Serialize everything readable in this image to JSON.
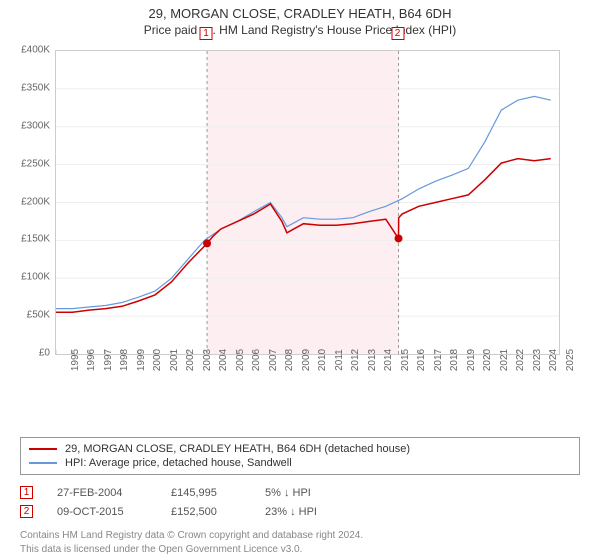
{
  "title": "29, MORGAN CLOSE, CRADLEY HEATH, B64 6DH",
  "subtitle": "Price paid vs. HM Land Registry's House Price Index (HPI)",
  "chart": {
    "type": "line",
    "background_color": "#ffffff",
    "grid_color": "#eeeeee",
    "axis_color": "#cccccc",
    "label_color": "#666666",
    "tick_fontsize": 10,
    "x_years": [
      1995,
      1996,
      1997,
      1998,
      1999,
      2000,
      2001,
      2002,
      2003,
      2004,
      2005,
      2006,
      2007,
      2008,
      2009,
      2010,
      2011,
      2012,
      2013,
      2014,
      2015,
      2016,
      2017,
      2018,
      2019,
      2020,
      2021,
      2022,
      2023,
      2024,
      2025
    ],
    "xlim": [
      1995,
      2025.5
    ],
    "ylim": [
      0,
      400000
    ],
    "ytick_step": 50000,
    "ytick_labels": [
      "£0",
      "£50K",
      "£100K",
      "£150K",
      "£200K",
      "£250K",
      "£300K",
      "£350K",
      "£400K"
    ],
    "shaded_band": {
      "start": 2004.16,
      "end": 2015.77,
      "fill": "#fdeef1",
      "border": "#999999"
    },
    "markers": [
      {
        "id": "1",
        "year": 2004.16,
        "value": 145995,
        "color": "#cc0000"
      },
      {
        "id": "2",
        "year": 2015.77,
        "value": 152500,
        "color": "#cc0000"
      }
    ],
    "series": [
      {
        "name": "sale-price-series",
        "label": "29, MORGAN CLOSE, CRADLEY HEATH, B64 6DH (detached house)",
        "color": "#cc0000",
        "line_width": 1.5,
        "points": [
          [
            1995,
            55000
          ],
          [
            1996,
            55000
          ],
          [
            1997,
            58000
          ],
          [
            1998,
            60000
          ],
          [
            1999,
            63000
          ],
          [
            2000,
            70000
          ],
          [
            2001,
            78000
          ],
          [
            2002,
            95000
          ],
          [
            2003,
            120000
          ],
          [
            2004.16,
            145995
          ],
          [
            2004.5,
            155000
          ],
          [
            2005,
            165000
          ],
          [
            2006,
            175000
          ],
          [
            2007,
            185000
          ],
          [
            2008,
            198000
          ],
          [
            2008.7,
            175000
          ],
          [
            2009,
            160000
          ],
          [
            2010,
            172000
          ],
          [
            2011,
            170000
          ],
          [
            2012,
            170000
          ],
          [
            2013,
            172000
          ],
          [
            2014,
            175000
          ],
          [
            2015,
            178000
          ],
          [
            2015.77,
            152500
          ],
          [
            2015.78,
            180000
          ],
          [
            2016,
            185000
          ],
          [
            2017,
            195000
          ],
          [
            2018,
            200000
          ],
          [
            2019,
            205000
          ],
          [
            2020,
            210000
          ],
          [
            2021,
            230000
          ],
          [
            2022,
            252000
          ],
          [
            2023,
            258000
          ],
          [
            2024,
            255000
          ],
          [
            2025,
            258000
          ]
        ]
      },
      {
        "name": "hpi-series",
        "label": "HPI: Average price, detached house, Sandwell",
        "color": "#6699dd",
        "line_width": 1.2,
        "points": [
          [
            1995,
            60000
          ],
          [
            1996,
            60000
          ],
          [
            1997,
            62000
          ],
          [
            1998,
            64000
          ],
          [
            1999,
            68000
          ],
          [
            2000,
            75000
          ],
          [
            2001,
            83000
          ],
          [
            2002,
            100000
          ],
          [
            2003,
            125000
          ],
          [
            2004,
            150000
          ],
          [
            2005,
            165000
          ],
          [
            2006,
            175000
          ],
          [
            2007,
            188000
          ],
          [
            2008,
            200000
          ],
          [
            2008.7,
            180000
          ],
          [
            2009,
            168000
          ],
          [
            2010,
            180000
          ],
          [
            2011,
            178000
          ],
          [
            2012,
            178000
          ],
          [
            2013,
            180000
          ],
          [
            2014,
            188000
          ],
          [
            2015,
            195000
          ],
          [
            2016,
            205000
          ],
          [
            2017,
            218000
          ],
          [
            2018,
            228000
          ],
          [
            2019,
            236000
          ],
          [
            2020,
            245000
          ],
          [
            2021,
            280000
          ],
          [
            2022,
            322000
          ],
          [
            2023,
            335000
          ],
          [
            2024,
            340000
          ],
          [
            2025,
            335000
          ]
        ]
      }
    ]
  },
  "legend": {
    "items": [
      {
        "color": "#cc0000",
        "label": "29, MORGAN CLOSE, CRADLEY HEATH, B64 6DH (detached house)"
      },
      {
        "color": "#6699dd",
        "label": "HPI: Average price, detached house, Sandwell"
      }
    ]
  },
  "records": [
    {
      "marker": "1",
      "date": "27-FEB-2004",
      "price": "£145,995",
      "delta": "5% ↓ HPI"
    },
    {
      "marker": "2",
      "date": "09-OCT-2015",
      "price": "£152,500",
      "delta": "23% ↓ HPI"
    }
  ],
  "footer": {
    "line1": "Contains HM Land Registry data © Crown copyright and database right 2024.",
    "line2": "This data is licensed under the Open Government Licence v3.0."
  }
}
